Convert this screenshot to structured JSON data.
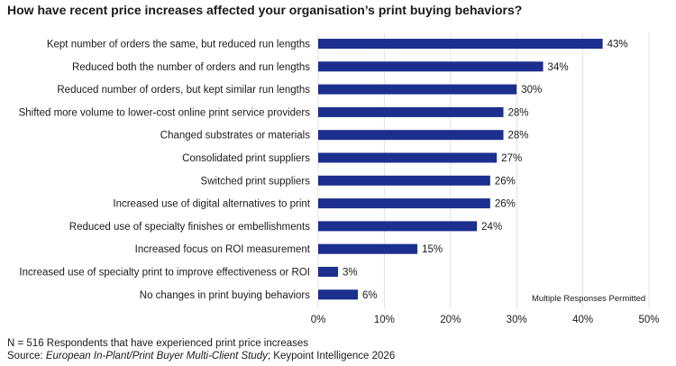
{
  "title": "How have recent price increases affected your organisation’s print buying behaviors?",
  "note": "Multiple Responses Permitted",
  "footer": {
    "n_line": "N = 516 Respondents that have experienced print price increases",
    "source_prefix": "Source: ",
    "source_study": "European In-Plant/Print Buyer Multi-Client Study",
    "source_suffix": "; Keypoint Intelligence 2026"
  },
  "colors": {
    "bar": "#1c2f8f",
    "grid": "#e2e2e2",
    "text": "#1a1a1a"
  },
  "chart_data": {
    "type": "bar",
    "orientation": "horizontal",
    "categories": [
      "Kept number of orders the same, but reduced run lengths",
      "Reduced both the number of orders and run lengths",
      "Reduced number of orders, but kept similar run lengths",
      "Shifted more volume to lower-cost online print service providers",
      "Changed substrates or materials",
      "Consolidated print suppliers",
      "Switched print suppliers",
      "Increased use of digital alternatives to print",
      "Reduced use of specialty finishes or embellishments",
      "Increased focus on ROI measurement",
      "Increased use of specialty print to improve effectiveness or ROI",
      "No changes in print buying behaviors"
    ],
    "values": [
      43,
      34,
      30,
      28,
      28,
      27,
      26,
      26,
      24,
      15,
      3,
      6
    ],
    "value_labels": [
      "43%",
      "34%",
      "30%",
      "28%",
      "28%",
      "27%",
      "26%",
      "26%",
      "24%",
      "15%",
      "3%",
      "6%"
    ],
    "xlim": [
      0,
      50
    ],
    "xticks": [
      "0%",
      "10%",
      "20%",
      "30%",
      "40%",
      "50%"
    ],
    "grid": true
  }
}
